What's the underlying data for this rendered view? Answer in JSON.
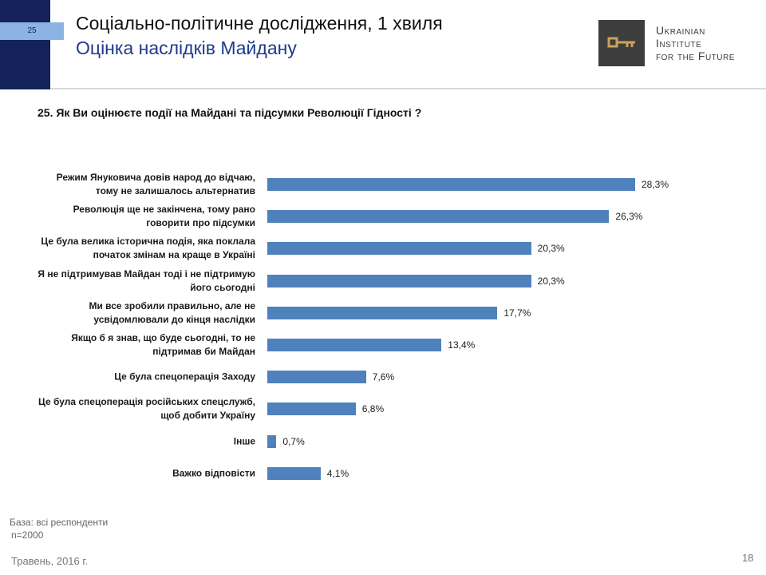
{
  "slide": {
    "number_tag": "25",
    "title": "Соціально-політичне дослідження, 1 хвиля",
    "subtitle": "Оцінка наслідків Майдану",
    "logo_lines": [
      "Ukrainian",
      "Institute",
      "for the Future"
    ],
    "base": "База: всі респонденти",
    "sample": "n=2000",
    "date": "Травень, 2016 г.",
    "page": "18"
  },
  "chart_data": {
    "type": "bar",
    "orientation": "horizontal",
    "title": "25. Як Ви оцінюєте події на Майдані та підсумки Революції Гідності ?",
    "categories": [
      "Режим Януковича довів народ до відчаю, тому не залишалось альтернатив",
      "Революція ще не закінчена, тому рано говорити про підсумки",
      "Це була велика історична подія, яка поклала початок змінам на краще в Україні",
      "Я не підтримував Майдан тоді і не підтримую його сьогодні",
      "Ми все зробили правильно, але не усвідомлювали до кінця наслідки",
      "Якщо б я знав, що буде сьогодні, то не підтримав би Майдан",
      "Це була спецоперація Заходу",
      "Це була спецоперація російських спецслужб, щоб добити Україну",
      "Інше",
      "Важко відповісти"
    ],
    "values": [
      28.3,
      26.3,
      20.3,
      20.3,
      17.7,
      13.4,
      7.6,
      6.8,
      0.7,
      4.1
    ],
    "value_labels": [
      "28,3%",
      "26,3%",
      "20,3%",
      "20,3%",
      "17,7%",
      "13,4%",
      "7,6%",
      "6,8%",
      "0,7%",
      "4,1%"
    ],
    "color": "#4f81bd"
  }
}
